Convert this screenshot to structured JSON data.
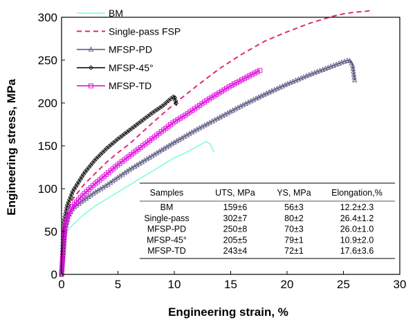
{
  "chart_data": {
    "type": "line",
    "xlabel": "Engineering strain, %",
    "ylabel": "Engineering stress, MPa",
    "xlim": [
      0,
      30
    ],
    "ylim": [
      0,
      300
    ],
    "x_ticks": [
      "0",
      "5",
      "10",
      "15",
      "20",
      "25",
      "30"
    ],
    "y_ticks": [
      "0",
      "50",
      "100",
      "150",
      "200",
      "250",
      "300"
    ],
    "legend_position": "top-left",
    "grid": false,
    "series": [
      {
        "name": "BM",
        "color": "#7fffd4",
        "line_style": "solid",
        "marker": "none",
        "x": [
          0,
          0.2,
          0.5,
          1,
          2,
          3,
          4,
          5,
          6,
          7,
          8,
          9,
          10,
          11,
          12,
          12.8,
          13.2,
          13.5
        ],
        "y": [
          0,
          35,
          50,
          58,
          70,
          80,
          88,
          96,
          104,
          112,
          120,
          128,
          136,
          142,
          149,
          155,
          152,
          143
        ]
      },
      {
        "name": "Single-pass FSP",
        "color": "#e0287a",
        "line_style": "dashed",
        "marker": "none",
        "x": [
          0,
          0.3,
          0.6,
          1,
          2,
          3,
          4,
          5,
          6,
          8,
          10,
          12,
          14,
          16,
          18,
          20,
          22,
          24,
          25,
          26,
          27,
          27.5
        ],
        "y": [
          0,
          55,
          75,
          88,
          105,
          118,
          131,
          142,
          152,
          176,
          199,
          220,
          240,
          257,
          272,
          283,
          293,
          301,
          304,
          306,
          307,
          308
        ]
      },
      {
        "name": "MFSP-PD",
        "color": "#5a5a82",
        "line_style": "solid",
        "marker": "triangle",
        "x": [
          0,
          0.3,
          0.6,
          1,
          2,
          3,
          4,
          5,
          6,
          8,
          10,
          12,
          14,
          16,
          18,
          20,
          22,
          24,
          25,
          25.5,
          25.8,
          26
        ],
        "y": [
          0,
          52,
          68,
          77,
          87,
          96,
          104,
          113,
          122,
          138,
          154,
          169,
          183,
          197,
          210,
          222,
          233,
          243,
          248,
          250,
          245,
          226
        ]
      },
      {
        "name": "MFSP-45°",
        "color": "#111111",
        "line_style": "solid",
        "marker": "diamond",
        "x": [
          0,
          0.2,
          0.5,
          1,
          2,
          3,
          4,
          5,
          6,
          7,
          8,
          9,
          9.6,
          10,
          10.2
        ],
        "y": [
          0,
          60,
          80,
          97,
          118,
          134,
          147,
          158,
          168,
          178,
          188,
          197,
          204,
          208,
          197
        ]
      },
      {
        "name": "MFSP-TD",
        "color": "#e010e0",
        "line_style": "solid",
        "marker": "square",
        "x": [
          0,
          0.3,
          0.6,
          1,
          2,
          3,
          4,
          5,
          6,
          7,
          8,
          9,
          10,
          11,
          12,
          13,
          14,
          15,
          16,
          17,
          17.6
        ],
        "y": [
          0,
          55,
          70,
          80,
          94,
          106,
          117,
          128,
          138,
          148,
          158,
          168,
          178,
          186,
          195,
          204,
          212,
          220,
          227,
          234,
          238
        ]
      }
    ],
    "table": {
      "headers": [
        "Samples",
        "UTS, MPa",
        "YS, MPa",
        "Elongation,%"
      ],
      "rows": [
        [
          "BM",
          "159±6",
          "56±3",
          "12.2±2.3"
        ],
        [
          "Single-pass",
          "302±7",
          "80±2",
          "26.4±1.2"
        ],
        [
          "MFSP-PD",
          "250±8",
          "70±3",
          "26.0±1.0"
        ],
        [
          "MFSP-45°",
          "205±5",
          "79±1",
          "10.9±2.0"
        ],
        [
          "MFSP-TD",
          "243±4",
          "72±1",
          "17.6±3.6"
        ]
      ]
    }
  }
}
